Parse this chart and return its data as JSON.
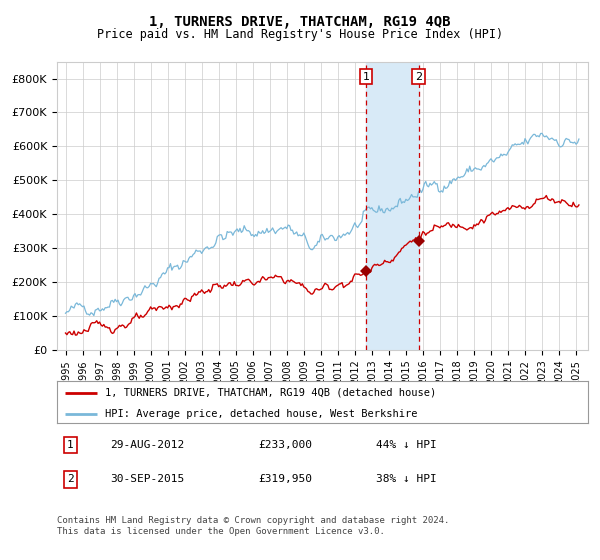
{
  "title": "1, TURNERS DRIVE, THATCHAM, RG19 4QB",
  "subtitle": "Price paid vs. HM Land Registry's House Price Index (HPI)",
  "legend_line1": "1, TURNERS DRIVE, THATCHAM, RG19 4QB (detached house)",
  "legend_line2": "HPI: Average price, detached house, West Berkshire",
  "annotation1_label": "1",
  "annotation1_date": "29-AUG-2012",
  "annotation1_price": "£233,000",
  "annotation1_pct": "44% ↓ HPI",
  "annotation2_label": "2",
  "annotation2_date": "30-SEP-2015",
  "annotation2_price": "£319,950",
  "annotation2_pct": "38% ↓ HPI",
  "footnote": "Contains HM Land Registry data © Crown copyright and database right 2024.\nThis data is licensed under the Open Government Licence v3.0.",
  "hpi_color": "#7ab8d9",
  "property_color": "#cc0000",
  "marker_color": "#990000",
  "point1_x": 2012.667,
  "point1_y": 233000,
  "point2_x": 2015.75,
  "point2_y": 319950,
  "shade_x1": 2012.667,
  "shade_x2": 2015.75,
  "shade_color": "#d8eaf7",
  "dashed_line_color": "#cc0000",
  "ylim": [
    0,
    850000
  ],
  "xlim_start": 1994.5,
  "xlim_end": 2025.7,
  "yticks": [
    0,
    100000,
    200000,
    300000,
    400000,
    500000,
    600000,
    700000,
    800000
  ],
  "ytick_labels": [
    "£0",
    "£100K",
    "£200K",
    "£300K",
    "£400K",
    "£500K",
    "£600K",
    "£700K",
    "£800K"
  ],
  "xticks": [
    1995,
    1996,
    1997,
    1998,
    1999,
    2000,
    2001,
    2002,
    2003,
    2004,
    2005,
    2006,
    2007,
    2008,
    2009,
    2010,
    2011,
    2012,
    2013,
    2014,
    2015,
    2016,
    2017,
    2018,
    2019,
    2020,
    2021,
    2022,
    2023,
    2024,
    2025
  ],
  "grid_color": "#cccccc",
  "background_color": "#ffffff",
  "plot_bg_color": "#ffffff"
}
